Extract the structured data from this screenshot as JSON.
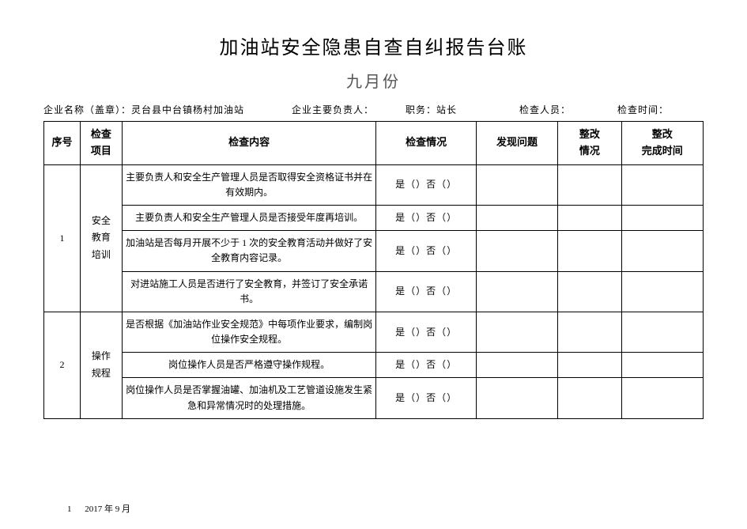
{
  "title": "加油站安全隐患自查自纠报告台账",
  "subtitle": "九月份",
  "meta": {
    "company_label": "企业名称（盖章）：",
    "company_value": "灵台县中台镇杨村加油站",
    "manager_label": "企业主要负责人：",
    "manager_value": "",
    "position_label": "职务：",
    "position_value": "站长",
    "inspector_label": "检查人员：",
    "inspector_value": "",
    "time_label": "检查时间：",
    "time_value": ""
  },
  "headers": {
    "seq": "序号",
    "category": "检查\n项目",
    "content": "检查内容",
    "check": "检查情况",
    "issue": "发现问题",
    "rectify": "整改\n情况",
    "complete": "整改\n完成时间"
  },
  "check_option": "是（）否（）",
  "groups": [
    {
      "seq": "1",
      "category": "安全\n教育\n培训",
      "rows": [
        {
          "content": "主要负责人和安全生产管理人员是否取得安全资格证书并在有效期内。"
        },
        {
          "content": "主要负责人和安全生产管理人员是否接受年度再培训。"
        },
        {
          "content": "加油站是否每月开展不少于 1 次的安全教育活动并做好了安全教育内容记录。"
        },
        {
          "content": "对进站施工人员是否进行了安全教育，并签订了安全承诺书。"
        }
      ]
    },
    {
      "seq": "2",
      "category": "操作\n规程",
      "rows": [
        {
          "content": "是否根据《加油站作业安全规范》中每项作业要求，编制岗位操作安全规程。"
        },
        {
          "content": "岗位操作人员是否严格遵守操作规程。"
        },
        {
          "content": "岗位操作人员是否掌握油罐、加油机及工艺管道设施发生紧急和异常情况时的处理措施。"
        }
      ]
    }
  ],
  "footer": {
    "page": "1",
    "date": "2017 年 9 月"
  }
}
